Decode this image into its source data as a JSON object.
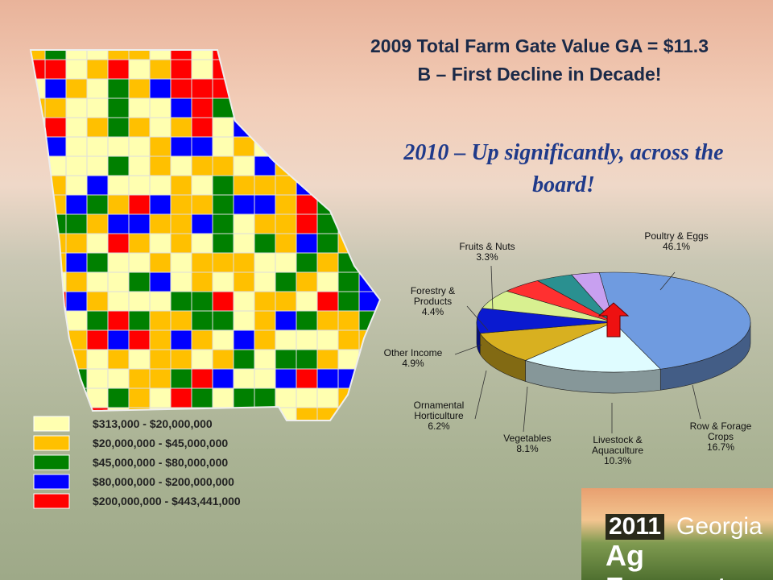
{
  "title": "2009 Total Farm Gate Value GA = $11.3 B – First Decline in Decade!",
  "subtitle": "2010 – Up significantly, across the board!",
  "map_legend": [
    {
      "label": "$313,000 - $20,000,000",
      "color": "#ffffb0"
    },
    {
      "label": "$20,000,000 - $45,000,000",
      "color": "#ffc000"
    },
    {
      "label": "$45,000,000 - $80,000,000",
      "color": "#008000"
    },
    {
      "label": "$80,000,000 - $200,000,000",
      "color": "#0000ff"
    },
    {
      "label": "$200,000,000 - $443,441,000",
      "color": "#ff0000"
    }
  ],
  "chart_data": {
    "type": "pie",
    "categories": [
      "Poultry & Eggs",
      "Row & Forage Crops",
      "Livestock & Aquaculture",
      "Vegetables",
      "Ornamental Horticulture",
      "Other Income",
      "Forestry & Products",
      "Fruits & Nuts"
    ],
    "values": [
      46.1,
      16.7,
      10.3,
      8.1,
      6.2,
      4.9,
      4.4,
      3.3
    ],
    "value_labels": [
      "46.1%",
      "16.7%",
      "10.3%",
      "8.1%",
      "6.2%",
      "4.9%",
      "4.4%",
      "3.3%"
    ],
    "colors": [
      "#6f9be0",
      "#dffcff",
      "#d8b020",
      "#0a1ad0",
      "#d8f090",
      "#ff3030",
      "#2a9090",
      "#c8a0f0"
    ]
  },
  "logo": {
    "year": "2011",
    "state": "Georgia",
    "tagline": "Ag Forecast"
  }
}
